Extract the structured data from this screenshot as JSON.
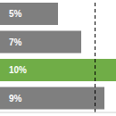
{
  "chart_data": {
    "type": "bar",
    "orientation": "horizontal",
    "categories": [
      null,
      null,
      null,
      null
    ],
    "values": [
      5,
      7,
      10,
      9
    ],
    "value_labels": [
      "5%",
      "7%",
      "10%",
      "9%"
    ],
    "data_labels": true,
    "colors": [
      "#7f7f7f",
      "#7f7f7f",
      "#70ad47",
      "#7f7f7f"
    ],
    "xlim": [
      0,
      10
    ],
    "xticks": [
      0,
      10
    ],
    "tick_labels": false,
    "grid": false,
    "reference_line": 8.2
  }
}
